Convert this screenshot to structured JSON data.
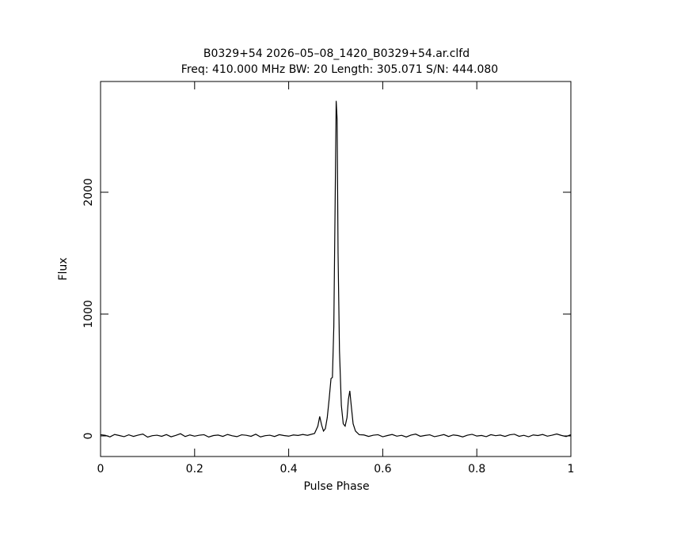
{
  "chart_data": {
    "type": "line",
    "title": "B0329+54 2026–05–08_1420_B0329+54.ar.clfd",
    "subtitle": "Freq: 410.000 MHz BW: 20 Length: 305.071 S/N: 444.080",
    "x_label": "Pulse Phase",
    "y_label": "Flux",
    "color": "#000000",
    "x": [
      0,
      0.01,
      0.02,
      0.03,
      0.04,
      0.05,
      0.06,
      0.07,
      0.08,
      0.09,
      0.1,
      0.11,
      0.12,
      0.13,
      0.14,
      0.15,
      0.16,
      0.17,
      0.18,
      0.19,
      0.2,
      0.21,
      0.22,
      0.23,
      0.24,
      0.25,
      0.26,
      0.27,
      0.28,
      0.29,
      0.3,
      0.31,
      0.32,
      0.33,
      0.34,
      0.35,
      0.36,
      0.37,
      0.38,
      0.39,
      0.4,
      0.41,
      0.42,
      0.43,
      0.44,
      0.455,
      0.462,
      0.466,
      0.47,
      0.474,
      0.478,
      0.482,
      0.486,
      0.49,
      0.493,
      0.496,
      0.499,
      0.501,
      0.503,
      0.505,
      0.508,
      0.512,
      0.516,
      0.52,
      0.524,
      0.527,
      0.53,
      0.533,
      0.537,
      0.542,
      0.55,
      0.56,
      0.57,
      0.58,
      0.59,
      0.6,
      0.61,
      0.62,
      0.63,
      0.64,
      0.65,
      0.66,
      0.67,
      0.68,
      0.69,
      0.7,
      0.71,
      0.72,
      0.73,
      0.74,
      0.75,
      0.76,
      0.77,
      0.78,
      0.79,
      0.8,
      0.81,
      0.82,
      0.83,
      0.84,
      0.85,
      0.86,
      0.87,
      0.88,
      0.89,
      0.9,
      0.91,
      0.92,
      0.93,
      0.94,
      0.95,
      0.96,
      0.97,
      0.98,
      0.99,
      1
    ],
    "values": [
      10,
      5,
      -8,
      12,
      3,
      -6,
      9,
      -4,
      7,
      15,
      -10,
      2,
      6,
      -3,
      11,
      -7,
      4,
      18,
      -5,
      8,
      -2,
      6,
      10,
      -9,
      3,
      7,
      -4,
      12,
      1,
      -6,
      9,
      5,
      -3,
      14,
      -8,
      2,
      6,
      -5,
      10,
      3,
      -2,
      8,
      4,
      12,
      5,
      20,
      80,
      160,
      90,
      40,
      60,
      150,
      300,
      470,
      480,
      900,
      2000,
      2750,
      2600,
      1500,
      700,
      250,
      100,
      80,
      150,
      300,
      370,
      250,
      100,
      40,
      10,
      8,
      -4,
      6,
      10,
      -7,
      3,
      12,
      -2,
      5,
      -9,
      7,
      15,
      -3,
      4,
      9,
      -6,
      2,
      11,
      -5,
      8,
      3,
      -8,
      6,
      13,
      -1,
      4,
      -6,
      10,
      2,
      7,
      -4,
      9,
      14,
      -3,
      5,
      -7,
      8,
      3,
      12,
      -2,
      6,
      16,
      4,
      -5,
      10
    ],
    "xlim": [
      0,
      1
    ],
    "xticks": [
      0,
      0.2,
      0.4,
      0.6,
      0.8,
      1
    ],
    "ylim": [
      -169,
      2909
    ],
    "yticks": [
      0,
      1000,
      2000
    ]
  }
}
